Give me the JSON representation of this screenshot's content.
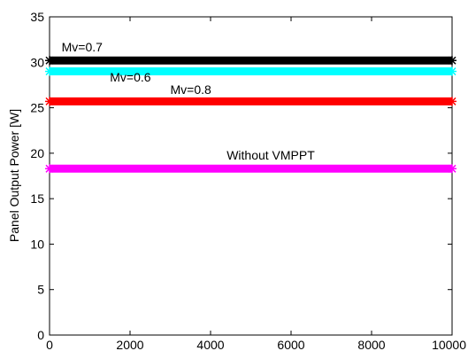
{
  "chart_data": {
    "type": "line",
    "title": "",
    "xlabel": "",
    "ylabel": "Panel Output Power [W]",
    "xlim": [
      0,
      10000
    ],
    "ylim": [
      0,
      35
    ],
    "xticks": [
      0,
      2000,
      4000,
      6000,
      8000,
      10000
    ],
    "yticks": [
      0,
      5,
      10,
      15,
      20,
      25,
      30,
      35
    ],
    "grid": false,
    "series": [
      {
        "name": "Mv=0.7",
        "x": [
          0,
          10000
        ],
        "y": [
          30.2,
          30.2
        ],
        "color": "#000000"
      },
      {
        "name": "Mv=0.6",
        "x": [
          0,
          10000
        ],
        "y": [
          29.0,
          29.0
        ],
        "color": "#00ffff"
      },
      {
        "name": "Mv=0.8",
        "x": [
          0,
          10000
        ],
        "y": [
          25.7,
          25.7
        ],
        "color": "#ff0000"
      },
      {
        "name": "Without VMPPT",
        "x": [
          0,
          10000
        ],
        "y": [
          18.3,
          18.3
        ],
        "color": "#ff00ff"
      }
    ],
    "annotations": [
      {
        "text": "Mv=0.7",
        "x": 300,
        "y": 31.2
      },
      {
        "text": "Mv=0.6",
        "x": 1500,
        "y": 27.9
      },
      {
        "text": "Mv=0.8",
        "x": 3000,
        "y": 26.5
      },
      {
        "text": "Without VMPPT",
        "x": 4400,
        "y": 19.3
      }
    ]
  }
}
